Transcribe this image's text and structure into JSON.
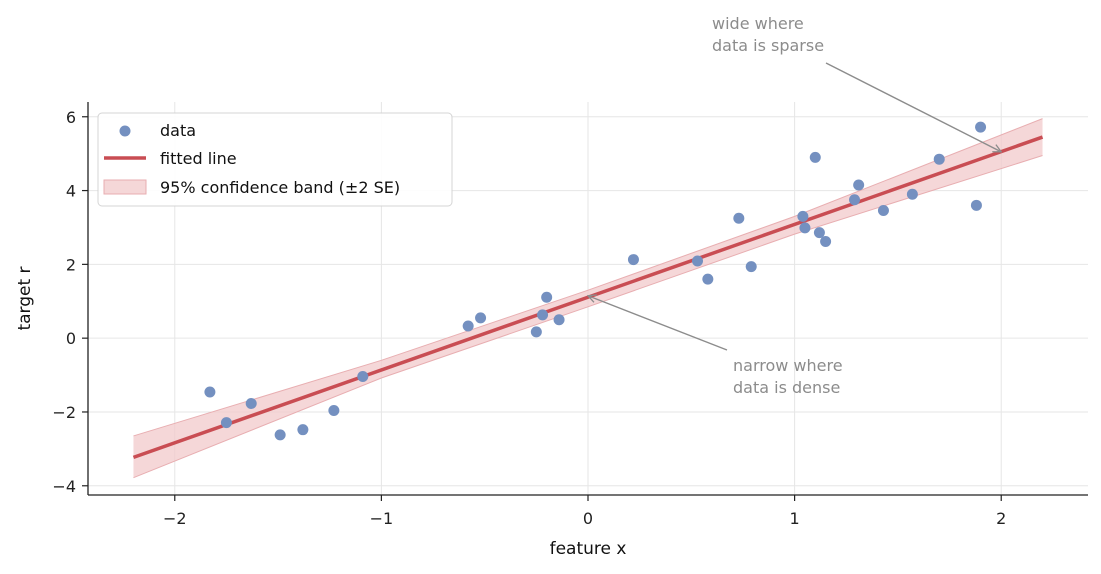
{
  "chart_data": {
    "type": "scatter",
    "xlabel": "feature  x",
    "ylabel": "target  r",
    "xlim": [
      -2.42,
      2.42
    ],
    "ylim": [
      -4.25,
      6.4
    ],
    "xticks": [
      -2,
      -1,
      0,
      1,
      2
    ],
    "yticks": [
      -4,
      -2,
      0,
      2,
      4,
      6
    ],
    "grid": true,
    "legend_position": "top-left",
    "colors": {
      "points": "#7490c0",
      "line": "#c94d53",
      "band_fill": "#f1c9cb",
      "band_edge": "#e8aeb1",
      "annotation": "#8c8c8c"
    },
    "series": [
      {
        "name": "data",
        "type": "scatter",
        "x": [
          -1.83,
          -1.75,
          -1.63,
          -1.49,
          -1.38,
          -1.23,
          -1.09,
          -0.58,
          -0.52,
          -0.25,
          -0.22,
          -0.2,
          -0.14,
          0.22,
          0.53,
          0.58,
          0.73,
          0.79,
          1.04,
          1.05,
          1.1,
          1.12,
          1.15,
          1.29,
          1.31,
          1.43,
          1.57,
          1.7,
          1.88,
          1.9
        ],
        "y": [
          -1.46,
          -2.29,
          -1.77,
          -2.62,
          -2.48,
          -1.96,
          -1.04,
          0.33,
          0.55,
          0.17,
          0.63,
          1.11,
          0.5,
          2.13,
          2.09,
          1.6,
          3.25,
          1.94,
          3.3,
          2.99,
          4.9,
          2.86,
          2.62,
          3.75,
          4.15,
          3.46,
          3.9,
          4.85,
          3.6,
          5.72
        ]
      },
      {
        "name": "fitted line",
        "type": "line",
        "x": [
          -2.2,
          2.2
        ],
        "y": [
          -3.23,
          5.45
        ]
      },
      {
        "name": "95% confidence band (±2 SE)",
        "type": "band",
        "x": [
          -2.2,
          -1.0,
          0.0,
          1.0,
          2.2
        ],
        "lower": [
          -3.78,
          -1.08,
          0.85,
          2.82,
          4.95
        ],
        "upper": [
          -2.65,
          -0.6,
          1.3,
          3.3,
          5.95
        ]
      }
    ],
    "annotations": [
      {
        "text": [
          "wide where",
          "data is sparse"
        ],
        "point": [
          2.0,
          5.05
        ],
        "text_at": [
          0.6,
          8.4
        ]
      },
      {
        "text": [
          "narrow where",
          "data is dense"
        ],
        "point": [
          0.0,
          1.15
        ],
        "text_at": [
          0.7,
          -0.75
        ]
      }
    ]
  }
}
